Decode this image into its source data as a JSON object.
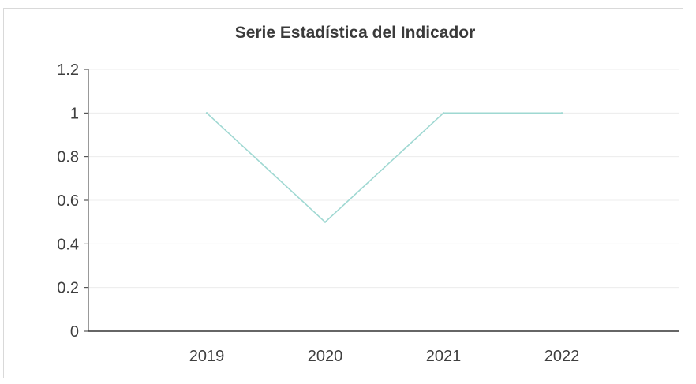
{
  "chart_data": {
    "type": "line",
    "title": "Serie Estadística del Indicador",
    "xlabel": "",
    "ylabel": "",
    "categories": [
      "2019",
      "2020",
      "2021",
      "2022"
    ],
    "series": [
      {
        "values": [
          1,
          0.5,
          1,
          1
        ]
      }
    ],
    "ylim": [
      0,
      1.2
    ],
    "yticks": [
      "0",
      "0.2",
      "0.4",
      "0.6",
      "0.8",
      "1",
      "1.2"
    ],
    "grid": true,
    "legend": "none",
    "line_color": "#9fd8d2",
    "grid_color": "#ececec",
    "axis_color": "#333333"
  }
}
